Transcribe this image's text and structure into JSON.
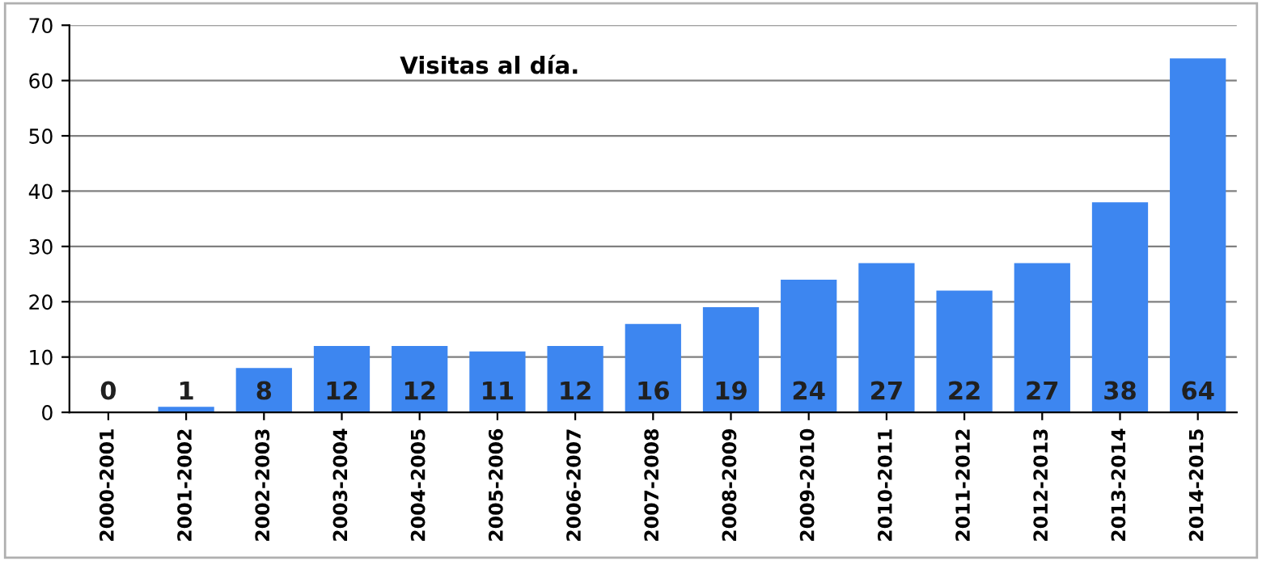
{
  "chart_data": {
    "type": "bar",
    "title": "Visitas al día.",
    "categories": [
      "2000-2001",
      "2001-2002",
      "2002-2003",
      "2003-2004",
      "2004-2005",
      "2005-2006",
      "2006-2007",
      "2007-2008",
      "2008-2009",
      "2009-2010",
      "2010-2011",
      "2011-2012",
      "2012-2013",
      "2013-2014",
      "2014-2015"
    ],
    "values": [
      0,
      1,
      8,
      12,
      12,
      11,
      12,
      16,
      19,
      24,
      27,
      22,
      27,
      38,
      64
    ],
    "color": "#3d86f0",
    "ylim": [
      0,
      70
    ],
    "yticks": [
      0,
      10,
      20,
      30,
      40,
      50,
      60,
      70
    ],
    "grid": "y",
    "data_labels": true
  }
}
